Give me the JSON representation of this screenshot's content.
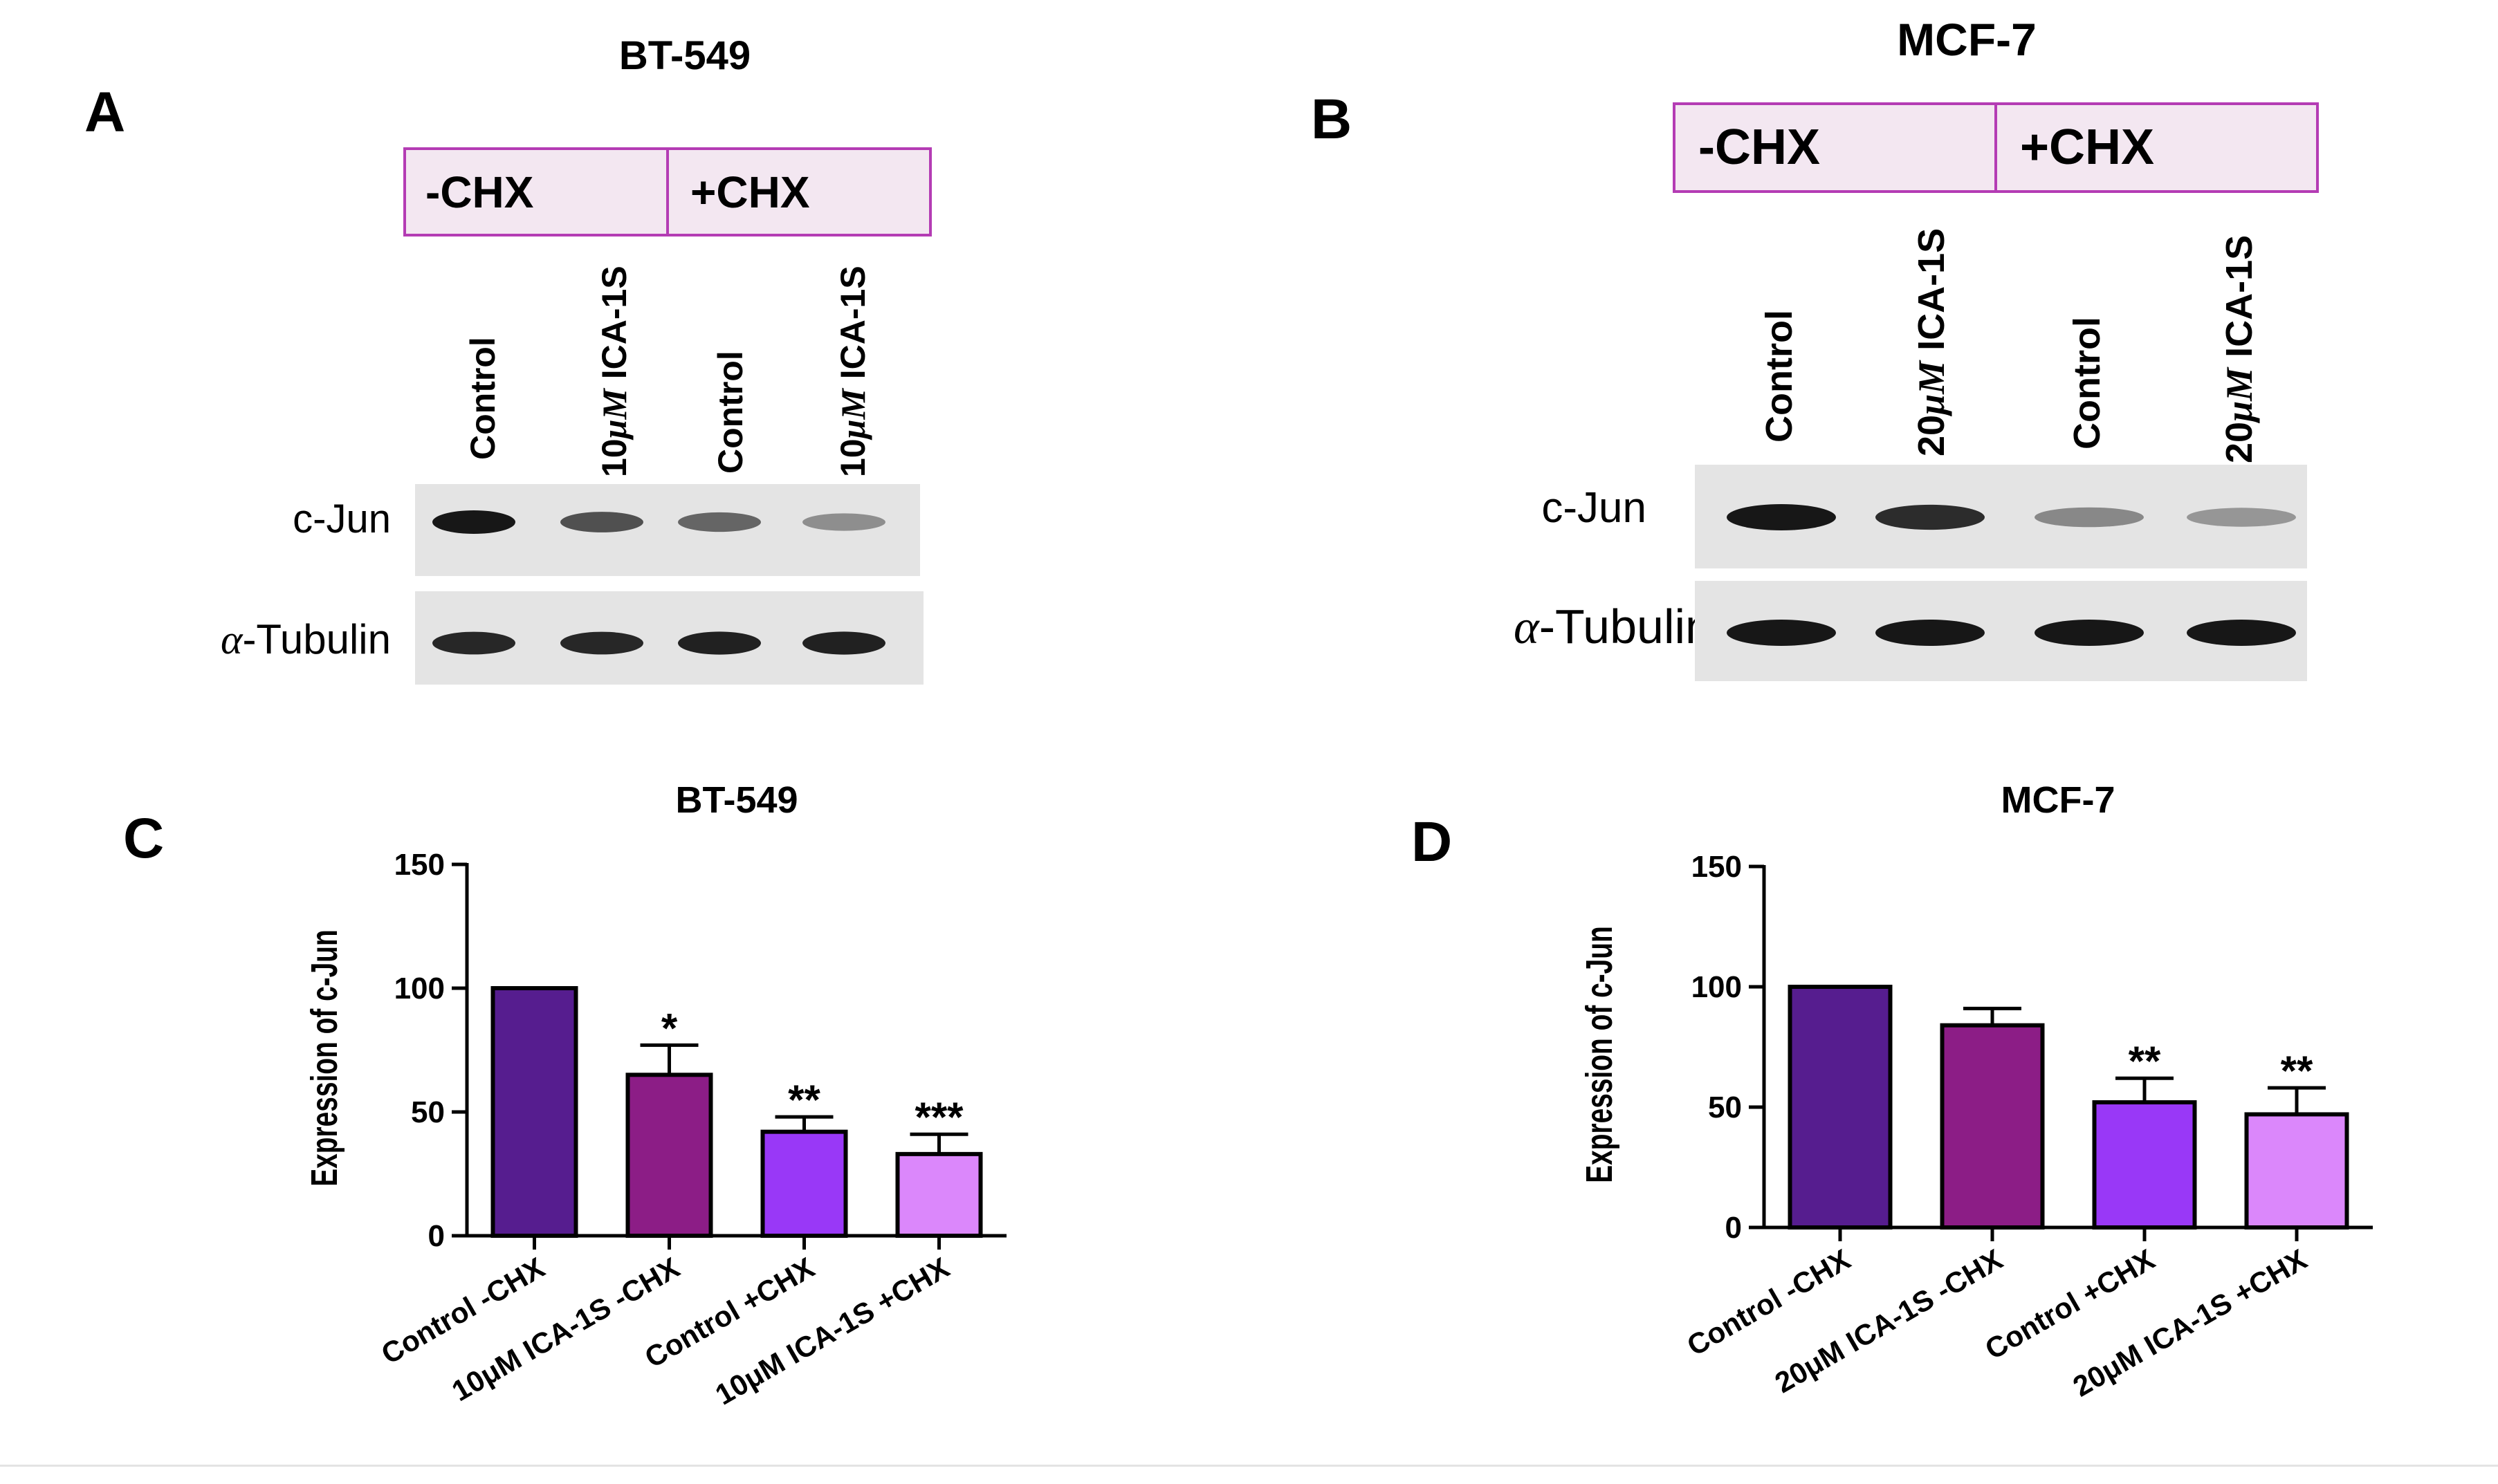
{
  "panels": {
    "A": {
      "letter": "A",
      "title": "BT-549",
      "treatments": [
        "-CHX",
        "+CHX"
      ],
      "lanes": [
        {
          "pre": "Control",
          "em": "",
          "post": ""
        },
        {
          "pre": "10",
          "em": "μM",
          "post": " ICA-1S"
        },
        {
          "pre": "Control",
          "em": "",
          "post": ""
        },
        {
          "pre": "10",
          "em": "μM",
          "post": " ICA-1S"
        }
      ],
      "blots": [
        {
          "greek": "",
          "label": "c-Jun",
          "intensity": [
            1.0,
            0.72,
            0.62,
            0.42
          ]
        },
        {
          "greek": "α",
          "label": "-Tubulin",
          "intensity": [
            0.92,
            0.92,
            0.95,
            0.95
          ]
        }
      ]
    },
    "B": {
      "letter": "B",
      "title": "MCF-7",
      "treatments": [
        "-CHX",
        "+CHX"
      ],
      "lanes": [
        {
          "pre": "Control",
          "em": "",
          "post": ""
        },
        {
          "pre": "20",
          "em": "μM",
          "post": " ICA-1S"
        },
        {
          "pre": "Control",
          "em": "",
          "post": ""
        },
        {
          "pre": "20",
          "em": "μM",
          "post": " ICA-1S"
        }
      ],
      "blots": [
        {
          "greek": "",
          "label": "c-Jun",
          "intensity": [
            1.0,
            0.9,
            0.45,
            0.38
          ]
        },
        {
          "greek": "α",
          "label": "-Tubulin",
          "intensity": [
            1.0,
            1.0,
            1.0,
            1.0
          ]
        }
      ]
    }
  },
  "chart_data": [
    {
      "panel": "C",
      "type": "bar",
      "title": "BT-549",
      "ylabel": "Expression of c-Jun",
      "xlabel": "",
      "ylim": [
        0,
        150
      ],
      "yticks": [
        0,
        50,
        100,
        150
      ],
      "categories": [
        "Control -CHX",
        "10μM ICA-1S -CHX",
        "Control +CHX",
        "10μM ICA-1S +CHX"
      ],
      "values": [
        100,
        65,
        42,
        33
      ],
      "errors": [
        0,
        12,
        6,
        8
      ],
      "significance": [
        "",
        "*",
        "**",
        "***"
      ],
      "colors": [
        "#561d8f",
        "#8c1d86",
        "#9938f7",
        "#db87fb"
      ]
    },
    {
      "panel": "D",
      "type": "bar",
      "title": "MCF-7",
      "ylabel": "Expression of c-Jun",
      "xlabel": "",
      "ylim": [
        0,
        150
      ],
      "yticks": [
        0,
        50,
        100,
        150
      ],
      "categories": [
        "Control -CHX",
        "20μM ICA-1S -CHX",
        "Control +CHX",
        "20μM ICA-1S +CHX"
      ],
      "values": [
        100,
        84,
        52,
        47
      ],
      "errors": [
        0,
        7,
        10,
        11
      ],
      "significance": [
        "",
        "",
        "**",
        "**"
      ],
      "colors": [
        "#561d8f",
        "#8c1d86",
        "#9938f7",
        "#db87fb"
      ]
    }
  ]
}
